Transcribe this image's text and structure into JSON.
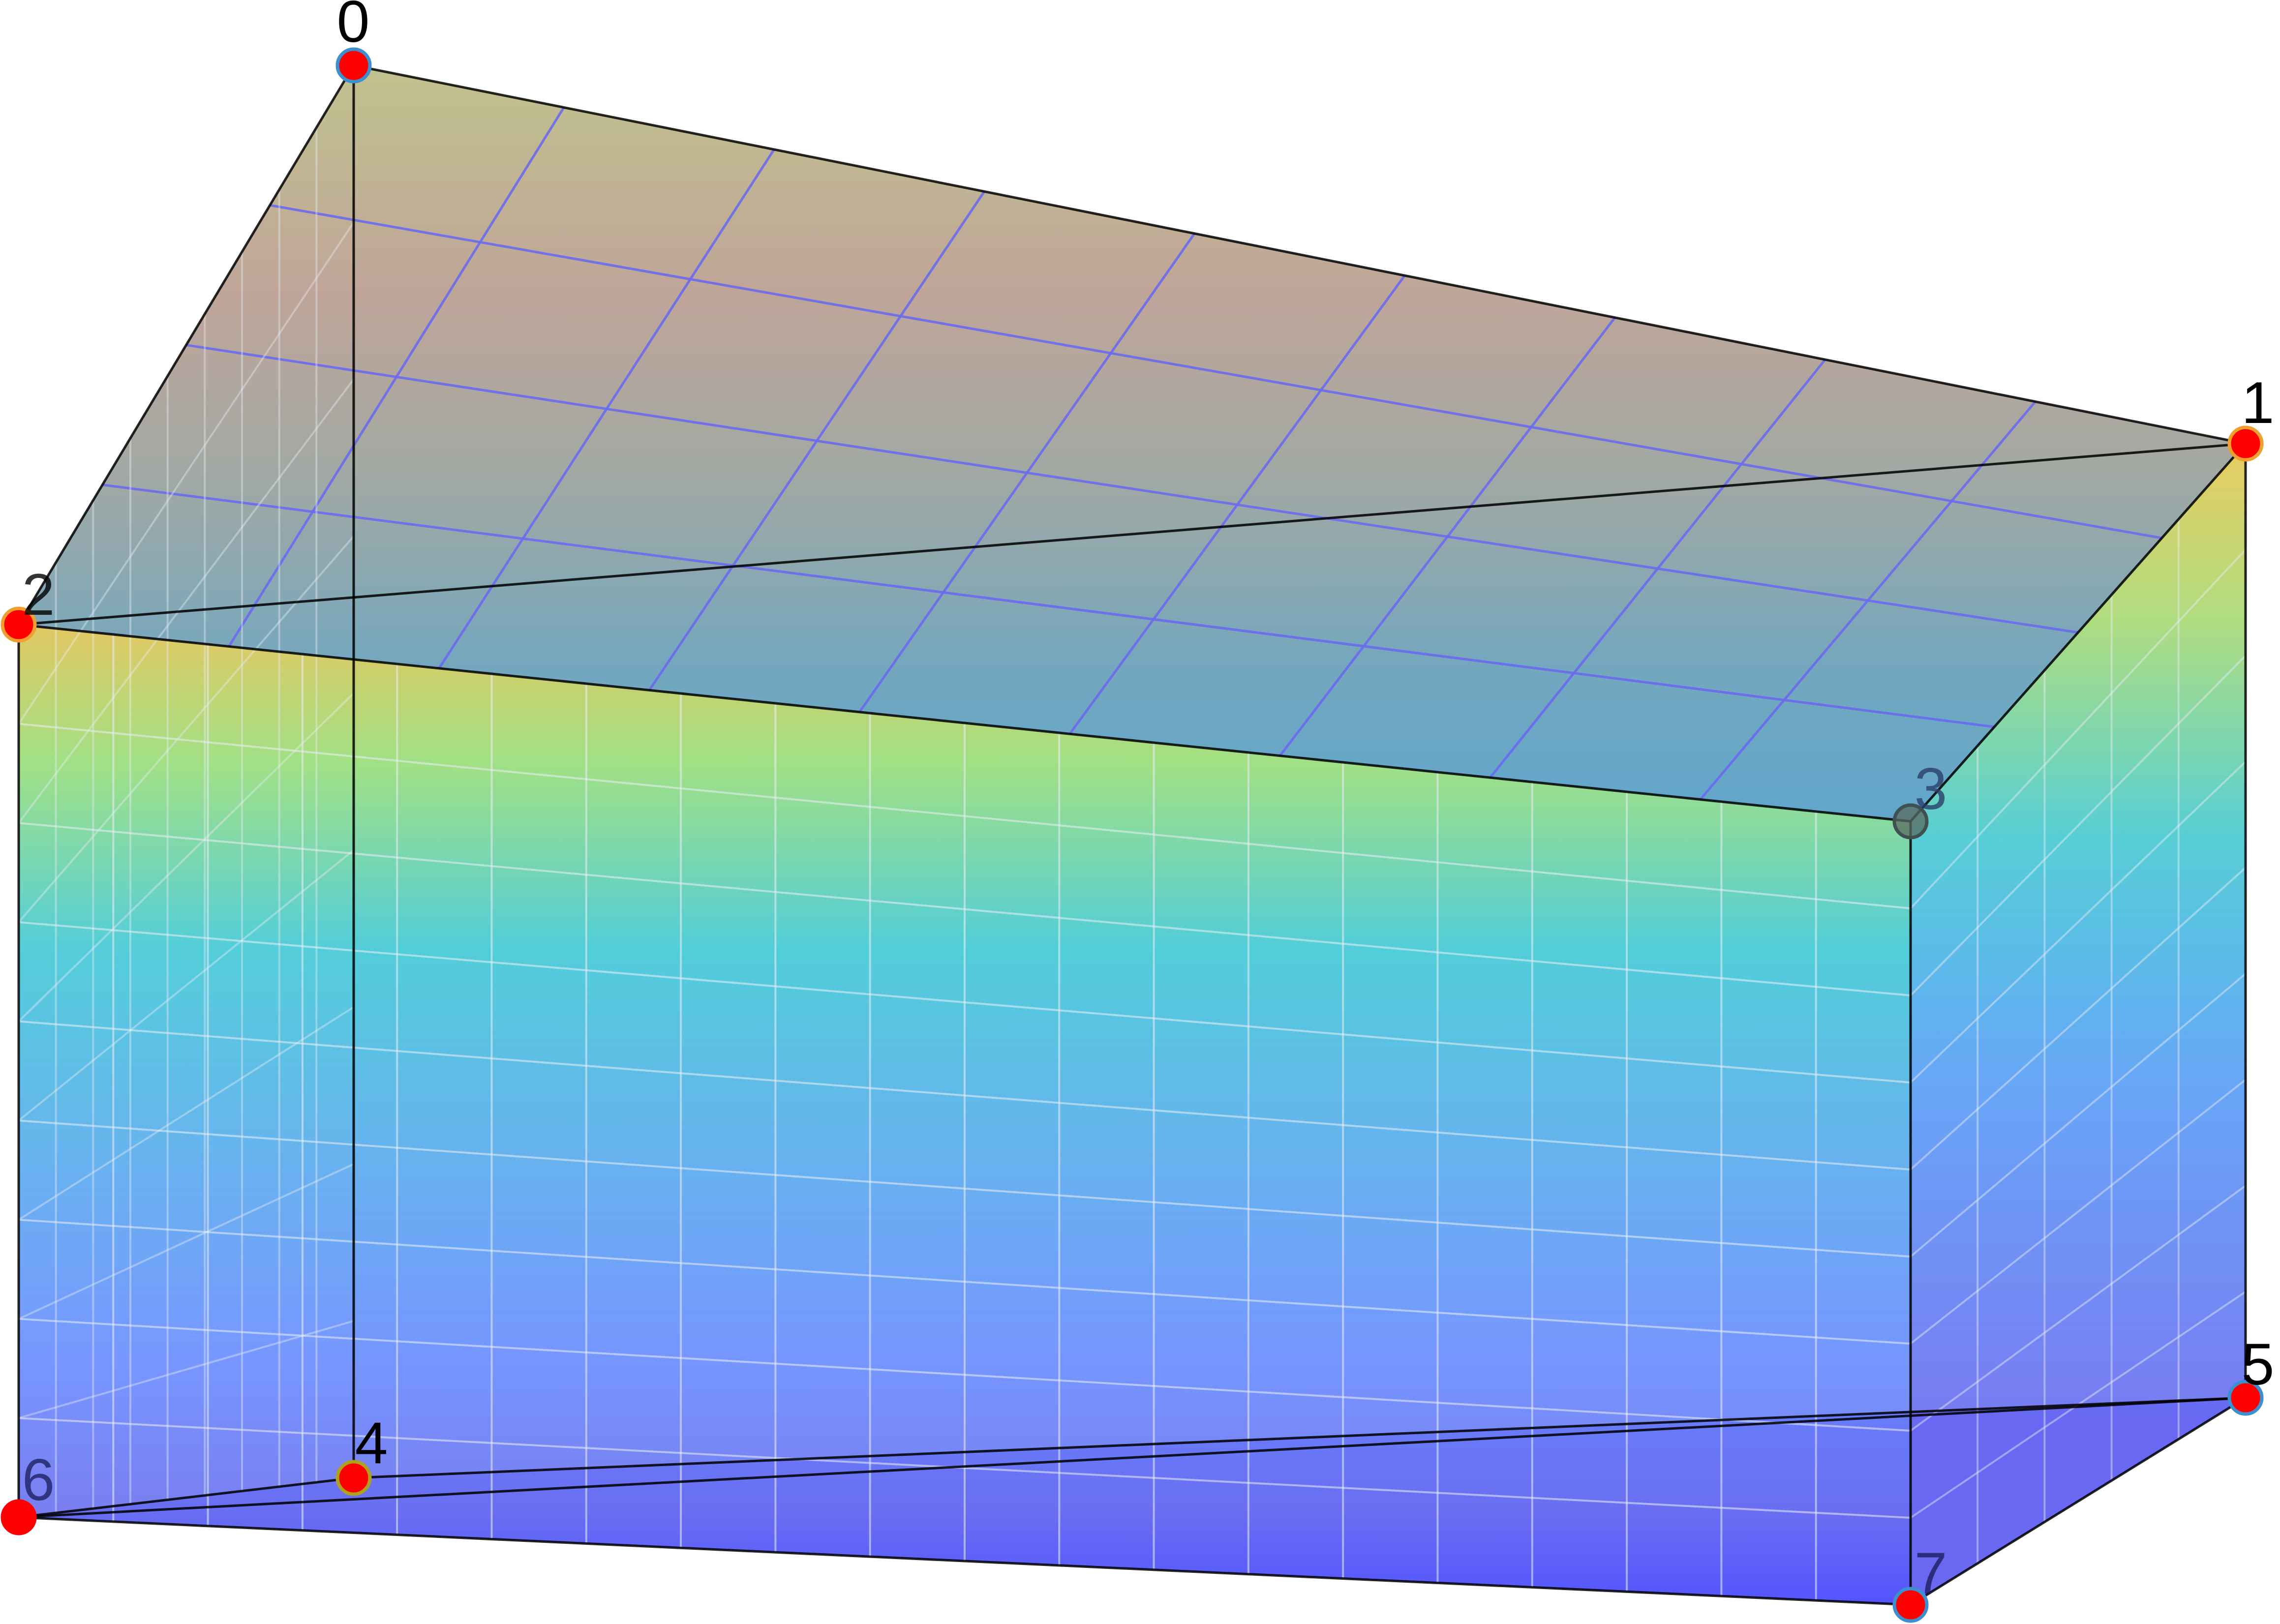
{
  "diagram": {
    "type": "3d-hexahedron",
    "vertex_labels": [
      "0",
      "1",
      "2",
      "3",
      "4",
      "5",
      "6",
      "7"
    ],
    "colors": {
      "background": "#ffffff",
      "edge": "#000000",
      "grid_line_top": "#6a6aee",
      "grid_line_side": "#e9eef6",
      "vertex_fill": "#ff0000",
      "vertex_outline": "#3d8fd0",
      "label_text": "#000000",
      "gradient_top": "#e0c252",
      "gradient_mid": "#40c8d8",
      "gradient_bottom": "#5555ff",
      "top_face_tint_start": "#b8c08a",
      "top_face_tint_end": "#6a9ac8"
    }
  }
}
